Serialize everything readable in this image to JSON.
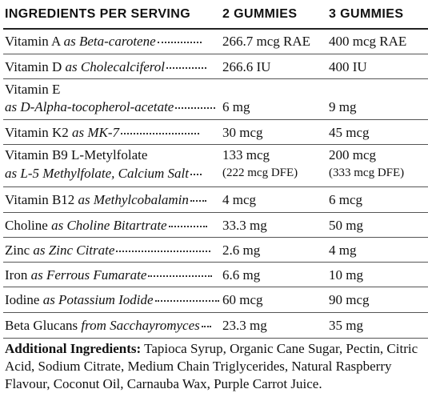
{
  "header": {
    "col1": "INGREDIENTS PER SERVING",
    "col2": "2 GUMMIES",
    "col3": "3 GUMMIES"
  },
  "rows": [
    {
      "name": "Vitamin A",
      "source": "as Beta-carotene",
      "v2": "266.7 mcg RAE",
      "v3": "400 mcg RAE"
    },
    {
      "name": "Vitamin D",
      "source": "as Cholecalciferol",
      "v2": "266.6 IU",
      "v3": "400 IU"
    },
    {
      "name": "Vitamin E",
      "source": "as D-Alpha-tocopherol-acetate",
      "v2": "6 mg",
      "v3": "9 mg"
    },
    {
      "name": "Vitamin K2",
      "source": "as MK-7",
      "v2": "30 mcg",
      "v3": "45 mcg"
    },
    {
      "name": "Vitamin B9 L-Metylfolate",
      "source": "as L-5 Methylfolate, Calcium Salt",
      "v2": "133 mcg",
      "v2b": "(222 mcg DFE)",
      "v3": "200 mcg",
      "v3b": "(333 mcg DFE)"
    },
    {
      "name": "Vitamin B12",
      "source": "as Methylcobalamin",
      "v2": "4 mcg",
      "v3": "6 mcg"
    },
    {
      "name": "Choline",
      "source": "as Choline Bitartrate",
      "v2": "33.3 mg",
      "v3": "50 mg"
    },
    {
      "name": "Zinc",
      "source": "as Zinc Citrate",
      "v2": "2.6 mg",
      "v3": "4 mg"
    },
    {
      "name": "Iron",
      "source": "as Ferrous Fumarate",
      "v2": "6.6 mg",
      "v3": "10 mg"
    },
    {
      "name": "Iodine",
      "source": "as Potassium Iodide",
      "v2": "60 mcg",
      "v3": "90 mcg"
    },
    {
      "name": "Beta Glucans",
      "source": "from Sacchayromyces",
      "v2": "23.3 mg",
      "v3": "35 mg"
    }
  ],
  "additional": {
    "label": "Additional Ingredients:",
    "text": "Tapioca Syrup, Organic Cane Sugar, Pectin, Citric Acid, Sodium Citrate, Medium Chain Triglycerides, Natural Raspberry Flavour, Coconut Oil, Carnauba Wax, Purple Carrot Juice."
  }
}
